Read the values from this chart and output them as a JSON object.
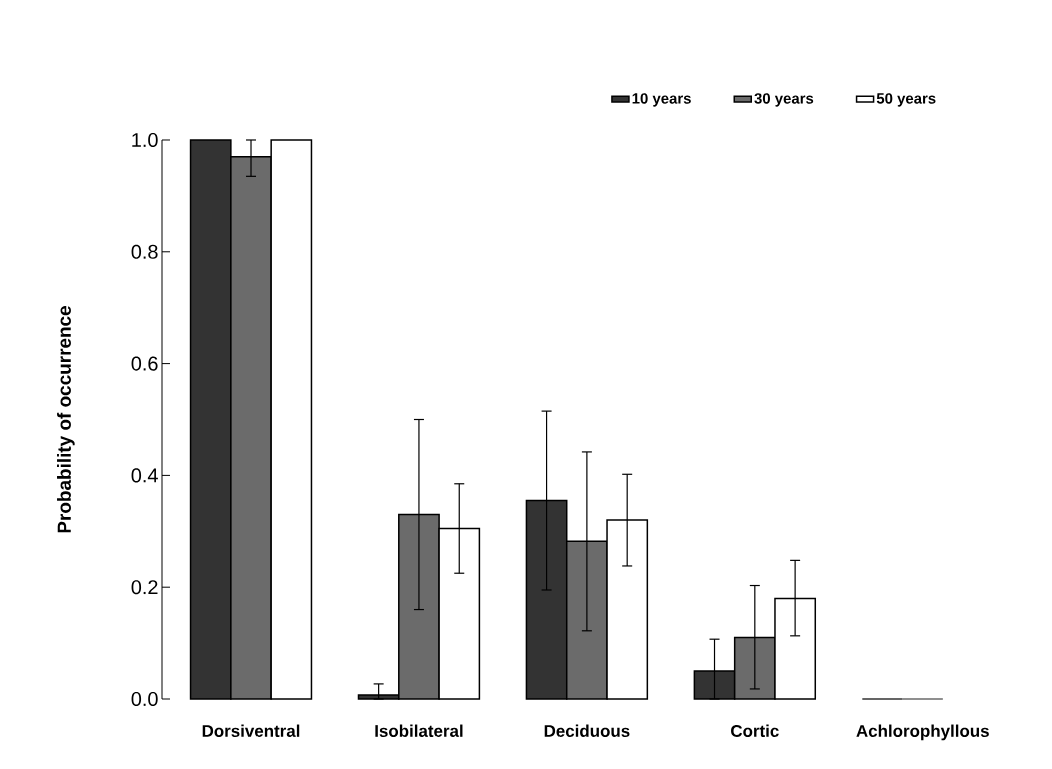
{
  "chart_data": {
    "type": "bar",
    "ylabel": "Probability of occurrence",
    "categories": [
      "Dorsiventral",
      "Isobilateral",
      "Deciduous",
      "Cortic",
      "Achlorophyllous"
    ],
    "series": [
      {
        "name": "10 years",
        "color": "#333333",
        "values": [
          1.0,
          0.007,
          0.355,
          0.05,
          0
        ],
        "errors": [
          null,
          [
            0,
            0.027
          ],
          [
            0.195,
            0.515
          ],
          [
            0,
            0.107
          ],
          null
        ]
      },
      {
        "name": "30 years",
        "color": "#6b6b6b",
        "values": [
          0.97,
          0.33,
          0.282,
          0.11,
          0
        ],
        "errors": [
          [
            0.935,
            1.0
          ],
          [
            0.16,
            0.5
          ],
          [
            0.122,
            0.442
          ],
          [
            0.018,
            0.203
          ],
          null
        ]
      },
      {
        "name": "50 years",
        "color": "#ffffff",
        "values": [
          1.0,
          0.305,
          0.32,
          0.18,
          0
        ],
        "errors": [
          null,
          [
            0.225,
            0.385
          ],
          [
            0.238,
            0.402
          ],
          [
            0.113,
            0.248
          ],
          null
        ]
      }
    ],
    "ylim": [
      0,
      1.0
    ],
    "yticks": [
      {
        "value": 0,
        "label": "0.0"
      },
      {
        "value": 0.2,
        "label": "0.2"
      },
      {
        "value": 0.4,
        "label": "0.4"
      },
      {
        "value": 0.6,
        "label": "0.6"
      },
      {
        "value": 0.8,
        "label": "0.8"
      },
      {
        "value": 1.0,
        "label": "1.0"
      }
    ],
    "grid": false,
    "legend": "top right"
  }
}
